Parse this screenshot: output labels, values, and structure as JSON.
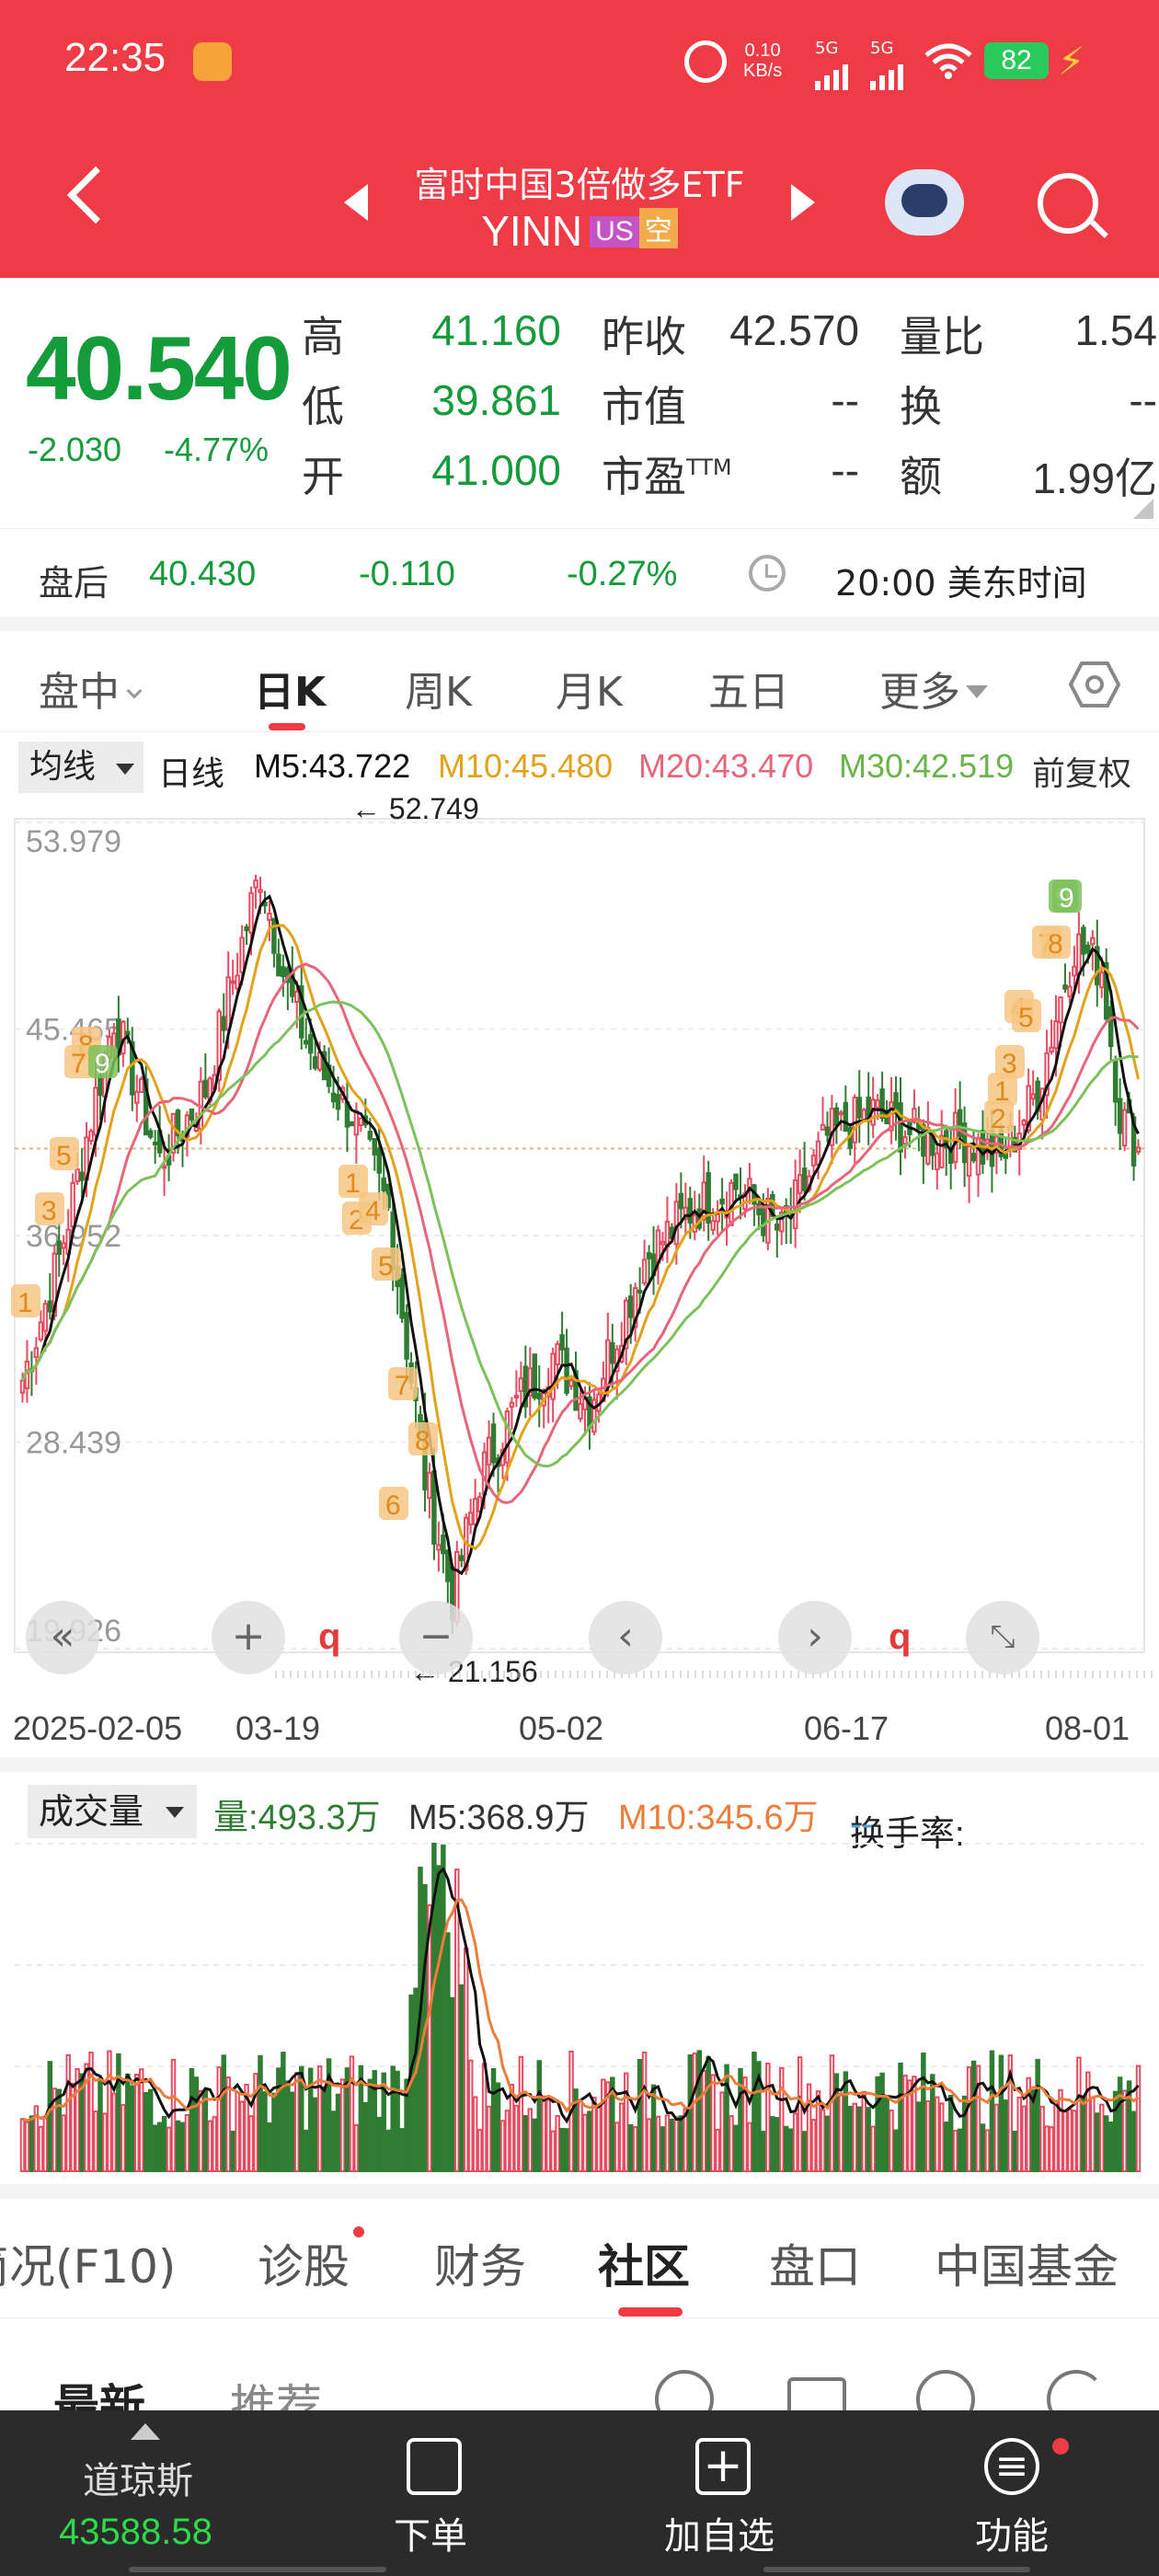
{
  "status_bar": {
    "time": "22:35",
    "net_speed_value": "0.10",
    "net_speed_unit": "KB/s",
    "sim1": "5G",
    "sim2": "5G",
    "battery": "82"
  },
  "header": {
    "name": "富时中国3倍做多ETF",
    "ticker": "YINN",
    "badge_market": "US",
    "badge_short": "空"
  },
  "quote": {
    "price": "40.540",
    "change": "-2.030",
    "change_pct": "-4.77%",
    "high_label": "高",
    "high": "41.160",
    "low_label": "低",
    "low": "39.861",
    "open_label": "开",
    "open": "41.000",
    "prev_close_label": "昨收",
    "prev_close": "42.570",
    "mkt_cap_label": "市值",
    "mkt_cap": "--",
    "pe_label": "市盈",
    "pe_suffix": "TTM",
    "pe": "--",
    "vol_ratio_label": "量比",
    "vol_ratio": "1.54",
    "turnover_label": "换",
    "turnover": "--",
    "amount_label": "额",
    "amount": "1.99亿"
  },
  "after_hours": {
    "label": "盘后",
    "price": "40.430",
    "change": "-0.110",
    "change_pct": "-0.27%",
    "time": "20:00 美东时间"
  },
  "period_tabs": {
    "intraday": "盘中",
    "daily": "日K",
    "weekly": "周K",
    "monthly": "月K",
    "five_day": "五日",
    "more": "更多"
  },
  "ma_legend": {
    "selector": "均线",
    "period": "日线",
    "m5": "M5:43.722",
    "m10": "M10:45.480",
    "m20": "M20:43.470",
    "m30": "M30:42.519",
    "adjust": "前复权"
  },
  "colors": {
    "up": "#e84a5f",
    "down": "#2e7d32",
    "m5": "#111111",
    "m10": "#e3a21a",
    "m20": "#e8657a",
    "m30": "#7cc25a",
    "accent": "#ef3b45"
  },
  "chart_data": {
    "type": "candlestick",
    "y_ticks": [
      "53.979",
      "45.465",
      "36.952",
      "28.439",
      "19.926"
    ],
    "ylim": [
      19.926,
      53.979
    ],
    "x_ticks": [
      "2025-02-05",
      "03-19",
      "05-02",
      "06-17",
      "08-01"
    ],
    "max_label": "52.749",
    "min_label": "21.156",
    "signal_q": "q",
    "td_markers": [
      "1",
      "3",
      "5",
      "8",
      "7",
      "9",
      "1",
      "2",
      "4",
      "5",
      "7",
      "8",
      "6",
      "9",
      "1",
      "2",
      "3",
      "4",
      "5",
      "7",
      "8",
      "9"
    ]
  },
  "volume": {
    "selector": "成交量",
    "vol": "量:493.3万",
    "m5": "M5:368.9万",
    "m10": "M10:345.6万",
    "turnover_label": "换手率:",
    "turnover_value": "--"
  },
  "section_tabs": [
    "简况(F10)",
    "诊股",
    "财务",
    "社区",
    "盘口",
    "中国基金"
  ],
  "sub_tabs": {
    "latest": "最新",
    "recommended": "推荐"
  },
  "bottom_nav": {
    "index_name": "道琼斯",
    "index_value": "43588.58",
    "order": "下单",
    "watchlist": "加自选",
    "functions": "功能"
  }
}
